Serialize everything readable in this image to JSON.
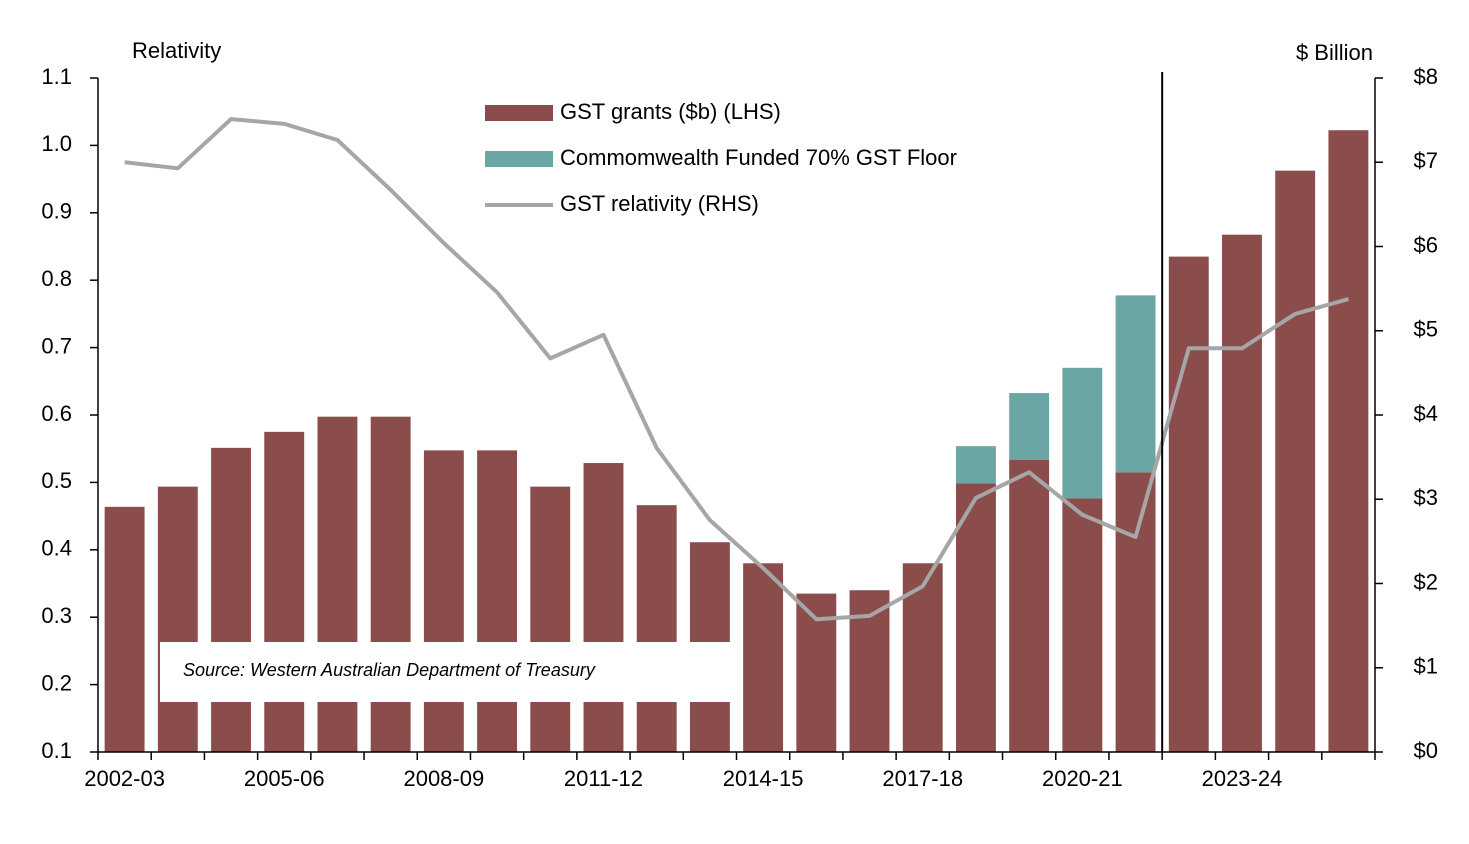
{
  "chart_data": {
    "type": "bar",
    "y_label": "Relativity",
    "y2_label": "$ Billion",
    "annotation": "Source: Western Australian Department of Treasury",
    "categories": [
      "2002-03",
      null,
      null,
      "2005-06",
      null,
      null,
      "2008-09",
      null,
      null,
      "2011-12",
      null,
      null,
      "2014-15",
      null,
      null,
      "2017-18",
      null,
      null,
      "2020-21",
      null,
      null,
      "2023-24",
      null,
      null
    ],
    "series": [
      {
        "name": "GST grants ($b) (LHS)",
        "type": "bar",
        "axis": "y2",
        "color": "#8b4c4c",
        "values": [
          2.91,
          3.15,
          3.61,
          3.8,
          3.98,
          3.98,
          3.58,
          3.58,
          3.15,
          3.43,
          2.93,
          2.49,
          2.24,
          1.88,
          1.92,
          2.24,
          3.19,
          3.47,
          3.01,
          3.32,
          5.88,
          6.14,
          6.9,
          7.38
        ]
      },
      {
        "name": "Commomwealth Funded 70% GST Floor",
        "type": "bar",
        "axis": "y2",
        "color": "#6aa6a4",
        "values": [
          null,
          null,
          null,
          null,
          null,
          null,
          null,
          null,
          null,
          null,
          null,
          null,
          null,
          null,
          null,
          null,
          0.44,
          0.79,
          1.55,
          2.1,
          null,
          null,
          null,
          null
        ]
      },
      {
        "name": "GST relativity (RHS)",
        "type": "line",
        "axis": "y",
        "color": "#a6a6a6",
        "values": [
          0.975,
          0.966,
          1.039,
          1.032,
          1.008,
          0.934,
          0.855,
          0.782,
          0.684,
          0.719,
          0.551,
          0.444,
          0.373,
          0.297,
          0.302,
          0.346,
          0.477,
          0.515,
          0.452,
          0.419,
          0.699,
          0.699,
          0.75,
          0.772
        ]
      }
    ],
    "ylim": [
      0.1,
      1.1
    ],
    "yticks": [
      0.1,
      0.2,
      0.3,
      0.4,
      0.5,
      0.6,
      0.7,
      0.8,
      0.9,
      {
        "value": 1,
        "label": "1.0"
      },
      1.1
    ],
    "y2lim": [
      0,
      8
    ],
    "y2ticks": [
      {
        "value": 0,
        "label": "$0"
      },
      {
        "value": 1,
        "label": "$1"
      },
      {
        "value": 2,
        "label": "$2"
      },
      {
        "value": 3,
        "label": "$3"
      },
      {
        "value": 4,
        "label": "$4"
      },
      {
        "value": 5,
        "label": "$5"
      },
      {
        "value": 6,
        "label": "$6"
      },
      {
        "value": 7,
        "label": "$7"
      },
      {
        "value": 8,
        "label": "$8"
      }
    ],
    "grid": false
  }
}
